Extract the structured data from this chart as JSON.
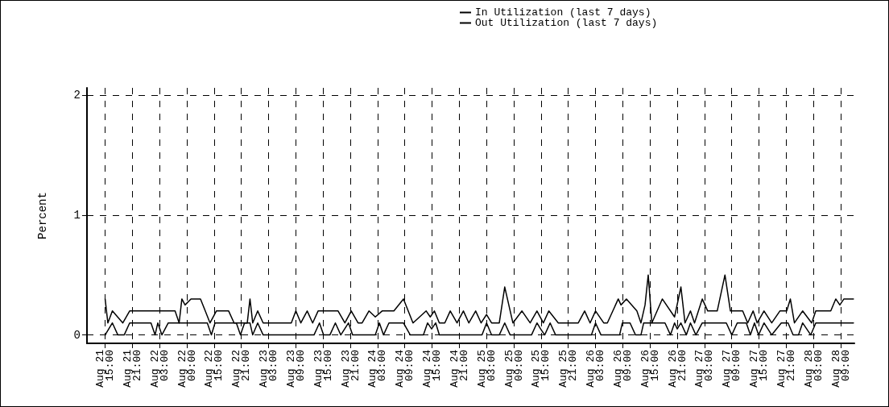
{
  "chart_data": {
    "type": "line",
    "ylabel": "Percent",
    "legend": "top",
    "grid": true,
    "marker": "none",
    "line_style": "solid",
    "xlim": [
      "--08-21T11:00",
      "--08-28T12:00"
    ],
    "ylim": [
      -0.07,
      2.06
    ],
    "yticks": [
      0,
      1,
      2
    ],
    "xticks": [
      {
        "value": "--08-21T15:00",
        "label": "Aug 21 15:00"
      },
      {
        "value": "--08-21T21:00",
        "label": "Aug 21 21:00"
      },
      {
        "value": "--08-22T03:00",
        "label": "Aug 22 03:00"
      },
      {
        "value": "--08-22T09:00",
        "label": "Aug 22 09:00"
      },
      {
        "value": "--08-22T15:00",
        "label": "Aug 22 15:00"
      },
      {
        "value": "--08-22T21:00",
        "label": "Aug 22 21:00"
      },
      {
        "value": "--08-23T03:00",
        "label": "Aug 23 03:00"
      },
      {
        "value": "--08-23T09:00",
        "label": "Aug 23 09:00"
      },
      {
        "value": "--08-23T15:00",
        "label": "Aug 23 15:00"
      },
      {
        "value": "--08-23T21:00",
        "label": "Aug 23 21:00"
      },
      {
        "value": "--08-24T03:00",
        "label": "Aug 24 03:00"
      },
      {
        "value": "--08-24T09:00",
        "label": "Aug 24 09:00"
      },
      {
        "value": "--08-24T15:00",
        "label": "Aug 24 15:00"
      },
      {
        "value": "--08-24T21:00",
        "label": "Aug 24 21:00"
      },
      {
        "value": "--08-25T03:00",
        "label": "Aug 25 03:00"
      },
      {
        "value": "--08-25T09:00",
        "label": "Aug 25 09:00"
      },
      {
        "value": "--08-25T15:00",
        "label": "Aug 25 15:00"
      },
      {
        "value": "--08-25T21:00",
        "label": "Aug 25 21:00"
      },
      {
        "value": "--08-26T03:00",
        "label": "Aug 26 03:00"
      },
      {
        "value": "--08-26T09:00",
        "label": "Aug 26 09:00"
      },
      {
        "value": "--08-26T15:00",
        "label": "Aug 26 15:00"
      },
      {
        "value": "--08-26T21:00",
        "label": "Aug 26 21:00"
      },
      {
        "value": "--08-27T03:00",
        "label": "Aug 27 03:00"
      },
      {
        "value": "--08-27T09:00",
        "label": "Aug 27 09:00"
      },
      {
        "value": "--08-27T15:00",
        "label": "Aug 27 15:00"
      },
      {
        "value": "--08-27T21:00",
        "label": "Aug 27 21:00"
      },
      {
        "value": "--08-28T03:00",
        "label": "Aug 28 03:00"
      },
      {
        "value": "--08-28T09:00",
        "label": "Aug 28 09:00"
      }
    ],
    "series": [
      {
        "name": "In Utilization (last 7 days)",
        "color": "#000000",
        "x": [
          "--08-21T15:00",
          "--08-21T15:36",
          "--08-21T16:36",
          "--08-21T18:54",
          "--08-21T20:24",
          "--08-22T06:24",
          "--08-22T07:18",
          "--08-22T07:54",
          "--08-22T08:36",
          "--08-22T09:54",
          "--08-22T12:00",
          "--08-22T14:06",
          "--08-22T15:30",
          "--08-22T18:12",
          "--08-22T19:24",
          "--08-22T22:18",
          "--08-22T22:54",
          "--08-22T23:30",
          "--08-23T00:36",
          "--08-23T01:48",
          "--08-23T08:00",
          "--08-23T09:00",
          "--08-23T10:06",
          "--08-23T11:30",
          "--08-23T12:42",
          "--08-23T13:54",
          "--08-23T18:18",
          "--08-23T19:48",
          "--08-23T21:12",
          "--08-23T22:42",
          "--08-23T23:36",
          "--08-24T01:06",
          "--08-24T02:30",
          "--08-24T04:00",
          "--08-24T06:36",
          "--08-24T08:42",
          "--08-24T10:48",
          "--08-24T13:42",
          "--08-24T14:36",
          "--08-24T15:30",
          "--08-24T16:36",
          "--08-24T17:48",
          "--08-24T19:00",
          "--08-24T20:30",
          "--08-24T21:54",
          "--08-24T23:06",
          "--08-25T00:36",
          "--08-25T01:48",
          "--08-25T03:00",
          "--08-25T04:06",
          "--08-25T05:48",
          "--08-25T07:00",
          "--08-25T08:48",
          "--08-25T10:48",
          "--08-25T12:36",
          "--08-25T14:06",
          "--08-25T15:30",
          "--08-25T16:42",
          "--08-25T18:48",
          "--08-25T23:12",
          "--08-26T00:36",
          "--08-26T01:48",
          "--08-26T03:00",
          "--08-26T04:48",
          "--08-26T05:36",
          "--08-26T08:00",
          "--08-26T08:36",
          "--08-26T09:48",
          "--08-26T12:06",
          "--08-26T13:00",
          "--08-26T13:54",
          "--08-26T14:36",
          "--08-26T15:24",
          "--08-26T17:42",
          "--08-26T20:24",
          "--08-26T21:48",
          "--08-26T22:42",
          "--08-26T23:54",
          "--08-27T00:48",
          "--08-27T02:30",
          "--08-27T03:42",
          "--08-27T05:48",
          "--08-27T07:30",
          "--08-27T08:42",
          "--08-27T11:24",
          "--08-27T12:30",
          "--08-27T13:42",
          "--08-27T14:36",
          "--08-27T16:06",
          "--08-27T17:48",
          "--08-27T19:36",
          "--08-27T21:06",
          "--08-27T21:54",
          "--08-27T22:48",
          "--08-28T00:36",
          "--08-28T02:36",
          "--08-28T03:30",
          "--08-28T06:48",
          "--08-28T07:54",
          "--08-28T08:48",
          "--08-28T09:42",
          "--08-28T11:48"
        ],
        "values": [
          0.3,
          0.1,
          0.2,
          0.1,
          0.2,
          0.2,
          0.1,
          0.3,
          0.25,
          0.3,
          0.3,
          0.1,
          0.2,
          0.2,
          0.1,
          0.1,
          0.3,
          0.1,
          0.2,
          0.1,
          0.1,
          0.2,
          0.1,
          0.2,
          0.1,
          0.2,
          0.2,
          0.1,
          0.2,
          0.1,
          0.1,
          0.2,
          0.15,
          0.2,
          0.2,
          0.3,
          0.1,
          0.2,
          0.15,
          0.2,
          0.1,
          0.1,
          0.2,
          0.1,
          0.2,
          0.1,
          0.2,
          0.1,
          0.17,
          0.1,
          0.1,
          0.4,
          0.1,
          0.2,
          0.1,
          0.2,
          0.1,
          0.2,
          0.1,
          0.1,
          0.2,
          0.1,
          0.2,
          0.1,
          0.1,
          0.3,
          0.25,
          0.3,
          0.2,
          0.1,
          0.25,
          0.5,
          0.1,
          0.3,
          0.15,
          0.4,
          0.1,
          0.2,
          0.1,
          0.3,
          0.2,
          0.2,
          0.5,
          0.2,
          0.2,
          0.1,
          0.2,
          0.1,
          0.2,
          0.1,
          0.2,
          0.2,
          0.3,
          0.1,
          0.2,
          0.1,
          0.2,
          0.2,
          0.3,
          0.25,
          0.3,
          0.3
        ]
      },
      {
        "name": "Out Utilization (last 7 days)",
        "color": "#000000",
        "x": [
          "--08-21T15:00",
          "--08-21T16:36",
          "--08-21T17:48",
          "--08-21T19:12",
          "--08-21T20:24",
          "--08-22T01:06",
          "--08-22T02:00",
          "--08-22T02:36",
          "--08-22T03:30",
          "--08-22T04:54",
          "--08-22T13:30",
          "--08-22T14:24",
          "--08-22T15:12",
          "--08-22T19:54",
          "--08-22T20:48",
          "--08-22T21:42",
          "--08-22T22:54",
          "--08-22T23:30",
          "--08-23T00:36",
          "--08-23T01:48",
          "--08-23T13:00",
          "--08-23T14:12",
          "--08-23T15:06",
          "--08-23T16:30",
          "--08-23T17:42",
          "--08-23T18:54",
          "--08-23T20:36",
          "--08-23T21:30",
          "--08-24T02:30",
          "--08-24T03:24",
          "--08-24T04:18",
          "--08-24T05:30",
          "--08-24T08:42",
          "--08-24T10:12",
          "--08-24T13:06",
          "--08-24T14:00",
          "--08-24T14:54",
          "--08-24T15:48",
          "--08-24T16:36",
          "--08-25T02:00",
          "--08-25T03:00",
          "--08-25T04:06",
          "--08-25T05:48",
          "--08-25T07:00",
          "--08-25T08:12",
          "--08-25T12:54",
          "--08-25T14:06",
          "--08-25T14:54",
          "--08-25T15:48",
          "--08-25T17:00",
          "--08-25T18:12",
          "--08-26T02:06",
          "--08-26T03:00",
          "--08-26T04:12",
          "--08-26T08:18",
          "--08-26T08:54",
          "--08-26T10:36",
          "--08-26T11:48",
          "--08-26T13:00",
          "--08-26T13:36",
          "--08-26T18:18",
          "--08-26T19:30",
          "--08-26T20:24",
          "--08-26T21:00",
          "--08-26T21:48",
          "--08-26T23:00",
          "--08-26T23:54",
          "--08-27T01:06",
          "--08-27T02:30",
          "--08-27T07:48",
          "--08-27T09:00",
          "--08-27T10:12",
          "--08-27T12:12",
          "--08-27T13:06",
          "--08-27T14:00",
          "--08-27T14:54",
          "--08-27T16:06",
          "--08-27T17:48",
          "--08-27T19:54",
          "--08-27T21:24",
          "--08-27T22:30",
          "--08-27T23:42",
          "--08-28T00:36",
          "--08-28T02:24",
          "--08-28T03:30",
          "--08-28T11:48"
        ],
        "values": [
          0,
          0.1,
          0,
          0,
          0.1,
          0.1,
          0,
          0.1,
          0,
          0.1,
          0.1,
          0,
          0.1,
          0.1,
          0,
          0.1,
          0.1,
          0,
          0.1,
          0,
          0,
          0.1,
          0,
          0,
          0.1,
          0,
          0.1,
          0,
          0,
          0.1,
          0,
          0.1,
          0.1,
          0,
          0,
          0.1,
          0.05,
          0.1,
          0,
          0,
          0.1,
          0,
          0,
          0.1,
          0,
          0,
          0.1,
          0.05,
          0,
          0.1,
          0,
          0,
          0.1,
          0,
          0,
          0.1,
          0.1,
          0,
          0,
          0.1,
          0.1,
          0,
          0.1,
          0.05,
          0.1,
          0,
          0.1,
          0,
          0.1,
          0.1,
          0,
          0.1,
          0.1,
          0,
          0.1,
          0,
          0.1,
          0,
          0.1,
          0.1,
          0,
          0,
          0.1,
          0,
          0.1,
          0.1
        ]
      }
    ]
  }
}
